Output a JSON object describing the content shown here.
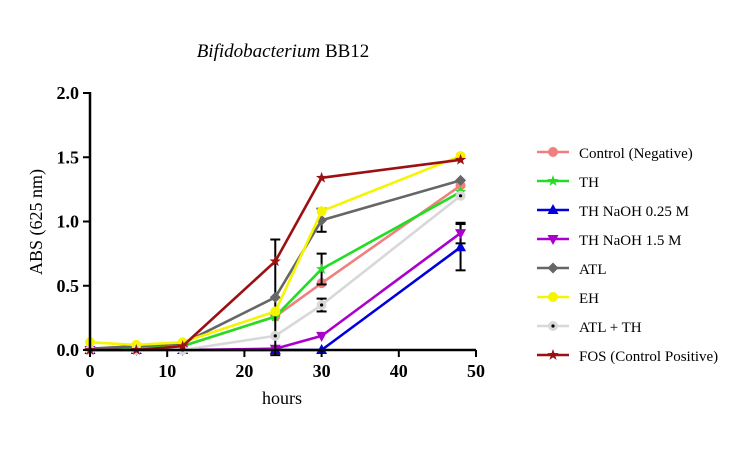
{
  "chart_data": {
    "type": "line",
    "title": {
      "italic": "Bifidobacterium",
      "rest": " BB12"
    },
    "xlabel": "hours",
    "ylabel": "ABS (625 nm)",
    "xlim": [
      0,
      50
    ],
    "ylim": [
      0,
      2.0
    ],
    "xticks": [
      0,
      10,
      20,
      30,
      40,
      50
    ],
    "xtick_labels": [
      "0",
      "10",
      "20",
      "30",
      "40",
      "50"
    ],
    "yticks": [
      0,
      0.5,
      1.0,
      1.5,
      2.0
    ],
    "ytick_labels": [
      "0.0",
      "0.5",
      "1.0",
      "1.5",
      "2.0"
    ],
    "grid": false,
    "legend_position": "right",
    "x": [
      0,
      6,
      12,
      24,
      30,
      48
    ],
    "series": [
      {
        "name": "Control (Negative)",
        "color": "#f08080",
        "marker": "circle",
        "values": [
          0.0,
          0.02,
          0.03,
          0.26,
          0.52,
          1.28
        ],
        "errors": [
          0,
          0,
          0,
          0,
          0,
          0
        ]
      },
      {
        "name": "TH",
        "color": "#22dd22",
        "marker": "star",
        "values": [
          0.0,
          0.02,
          0.03,
          0.26,
          0.63,
          1.23
        ],
        "errors": [
          0,
          0,
          0,
          0,
          0.12,
          0
        ]
      },
      {
        "name": "TH NaOH 0.25 M",
        "color": "#0000dd",
        "marker": "triangle-up",
        "values": [
          0.0,
          0.0,
          0.0,
          0.0,
          0.0,
          0.8
        ],
        "errors": [
          0,
          0,
          0,
          0,
          0,
          0.18
        ]
      },
      {
        "name": "TH NaOH 1.5 M",
        "color": "#aa00cc",
        "marker": "triangle-down",
        "values": [
          0.0,
          0.0,
          0.0,
          0.01,
          0.11,
          0.91
        ],
        "errors": [
          0,
          0,
          0,
          0,
          0,
          0.08
        ]
      },
      {
        "name": "ATL",
        "color": "#666666",
        "marker": "diamond",
        "values": [
          0.01,
          0.03,
          0.05,
          0.41,
          1.01,
          1.32
        ],
        "errors": [
          0,
          0,
          0,
          0.45,
          0.09,
          0
        ]
      },
      {
        "name": "EH",
        "color": "#f5f500",
        "marker": "circle",
        "values": [
          0.06,
          0.04,
          0.06,
          0.3,
          1.08,
          1.51
        ],
        "errors": [
          0,
          0,
          0,
          0,
          0,
          0
        ]
      },
      {
        "name": "ATL + TH",
        "color": "#d8d8d8",
        "marker": "dot-circle",
        "values": [
          0.0,
          0.0,
          0.0,
          0.11,
          0.35,
          1.2
        ],
        "errors": [
          0,
          0,
          0,
          0,
          0.05,
          0
        ]
      },
      {
        "name": "FOS (Control Positive)",
        "color": "#9b1111",
        "marker": "star",
        "values": [
          0.0,
          0.0,
          0.03,
          0.69,
          1.34,
          1.48
        ],
        "errors": [
          0,
          0,
          0,
          0,
          0,
          0
        ]
      }
    ]
  }
}
